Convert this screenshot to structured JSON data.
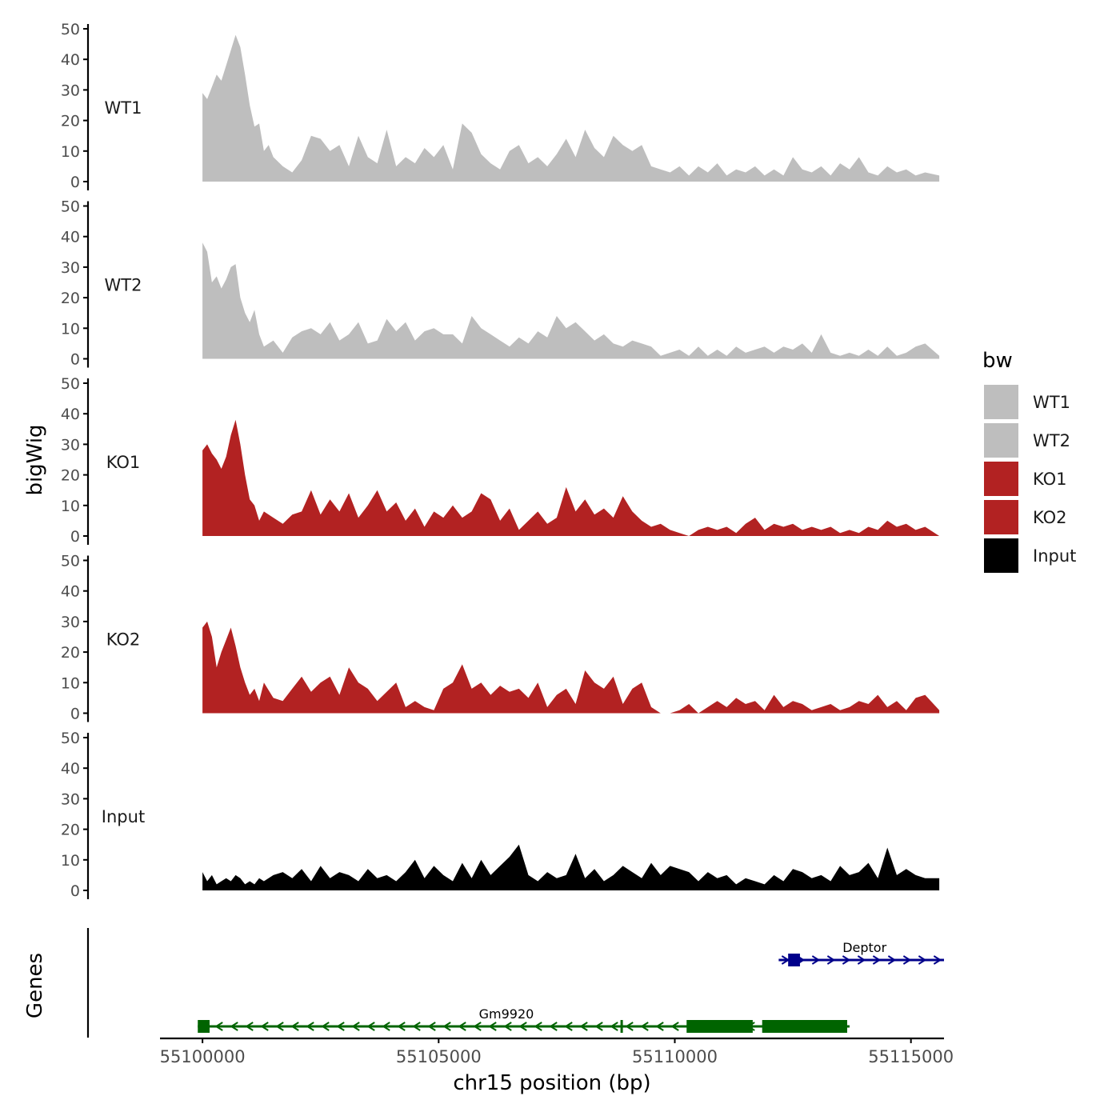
{
  "chart_data": {
    "type": "area",
    "region": "chr15",
    "xlabel": "chr15 position (bp)",
    "ylabel": "bigWig",
    "genes_label": "Genes",
    "xlim": [
      55099100,
      55115700
    ],
    "xticks": [
      55100000,
      55105000,
      55110000,
      55115000
    ],
    "xtick_labels": [
      "55100000",
      "55105000",
      "55110000",
      "55115000"
    ],
    "ylim": [
      0,
      50
    ],
    "yticks": [
      0,
      10,
      20,
      30,
      40,
      50
    ],
    "ytick_labels": [
      "0",
      "10",
      "20",
      "30",
      "40",
      "50"
    ],
    "series": [
      {
        "name": "WT1",
        "color": "#BEBEBE",
        "x": [
          55100000,
          55100100,
          55100200,
          55100300,
          55100400,
          55100500,
          55100600,
          55100700,
          55100800,
          55100900,
          55101000,
          55101100,
          55101200,
          55101300,
          55101400,
          55101500,
          55101700,
          55101900,
          55102100,
          55102300,
          55102500,
          55102700,
          55102900,
          55103100,
          55103300,
          55103500,
          55103700,
          55103900,
          55104100,
          55104300,
          55104500,
          55104700,
          55104900,
          55105100,
          55105300,
          55105500,
          55105700,
          55105900,
          55106100,
          55106300,
          55106500,
          55106700,
          55106900,
          55107100,
          55107300,
          55107500,
          55107700,
          55107900,
          55108100,
          55108300,
          55108500,
          55108700,
          55108900,
          55109100,
          55109300,
          55109500,
          55109700,
          55109900,
          55110100,
          55110300,
          55110500,
          55110700,
          55110900,
          55111100,
          55111300,
          55111500,
          55111700,
          55111900,
          55112100,
          55112300,
          55112500,
          55112700,
          55112900,
          55113100,
          55113300,
          55113500,
          55113700,
          55113900,
          55114100,
          55114300,
          55114500,
          55114700,
          55114900,
          55115100,
          55115300,
          55115600
        ],
        "y": [
          29,
          27,
          31,
          35,
          33,
          38,
          43,
          48,
          44,
          35,
          25,
          18,
          19,
          10,
          12,
          8,
          5,
          3,
          7,
          15,
          14,
          10,
          12,
          5,
          15,
          8,
          6,
          17,
          5,
          8,
          6,
          11,
          8,
          12,
          4,
          19,
          16,
          9,
          6,
          4,
          10,
          12,
          6,
          8,
          5,
          9,
          14,
          8,
          17,
          11,
          8,
          15,
          12,
          10,
          12,
          5,
          4,
          3,
          5,
          2,
          5,
          3,
          6,
          2,
          4,
          3,
          5,
          2,
          4,
          2,
          8,
          4,
          3,
          5,
          2,
          6,
          4,
          8,
          3,
          2,
          5,
          3,
          4,
          2,
          3,
          2
        ]
      },
      {
        "name": "WT2",
        "color": "#BEBEBE",
        "x": [
          55100000,
          55100100,
          55100200,
          55100300,
          55100400,
          55100500,
          55100600,
          55100700,
          55100800,
          55100900,
          55101000,
          55101100,
          55101200,
          55101300,
          55101500,
          55101700,
          55101900,
          55102100,
          55102300,
          55102500,
          55102700,
          55102900,
          55103100,
          55103300,
          55103500,
          55103700,
          55103900,
          55104100,
          55104300,
          55104500,
          55104700,
          55104900,
          55105100,
          55105300,
          55105500,
          55105700,
          55105900,
          55106100,
          55106300,
          55106500,
          55106700,
          55106900,
          55107100,
          55107300,
          55107500,
          55107700,
          55107900,
          55108100,
          55108300,
          55108500,
          55108700,
          55108900,
          55109100,
          55109300,
          55109500,
          55109700,
          55109900,
          55110100,
          55110300,
          55110500,
          55110700,
          55110900,
          55111100,
          55111300,
          55111500,
          55111700,
          55111900,
          55112100,
          55112300,
          55112500,
          55112700,
          55112900,
          55113100,
          55113300,
          55113500,
          55113700,
          55113900,
          55114100,
          55114300,
          55114500,
          55114700,
          55114900,
          55115100,
          55115300,
          55115600
        ],
        "y": [
          38,
          35,
          25,
          27,
          23,
          26,
          30,
          31,
          20,
          15,
          12,
          16,
          8,
          4,
          6,
          2,
          7,
          9,
          10,
          8,
          12,
          6,
          8,
          12,
          5,
          6,
          13,
          9,
          12,
          6,
          9,
          10,
          8,
          8,
          5,
          14,
          10,
          8,
          6,
          4,
          7,
          5,
          9,
          7,
          14,
          10,
          12,
          9,
          6,
          8,
          5,
          4,
          6,
          5,
          4,
          1,
          2,
          3,
          1,
          4,
          1,
          3,
          1,
          4,
          2,
          3,
          4,
          2,
          4,
          3,
          5,
          2,
          8,
          2,
          1,
          2,
          1,
          3,
          1,
          4,
          1,
          2,
          4,
          5,
          1
        ]
      },
      {
        "name": "KO1",
        "color": "#B22222",
        "x": [
          55100000,
          55100100,
          55100200,
          55100300,
          55100400,
          55100500,
          55100600,
          55100700,
          55100800,
          55100900,
          55101000,
          55101100,
          55101200,
          55101300,
          55101500,
          55101700,
          55101900,
          55102100,
          55102300,
          55102500,
          55102700,
          55102900,
          55103100,
          55103300,
          55103500,
          55103700,
          55103900,
          55104100,
          55104300,
          55104500,
          55104700,
          55104900,
          55105100,
          55105300,
          55105500,
          55105700,
          55105900,
          55106100,
          55106300,
          55106500,
          55106700,
          55106900,
          55107100,
          55107300,
          55107500,
          55107700,
          55107900,
          55108100,
          55108300,
          55108500,
          55108700,
          55108900,
          55109100,
          55109300,
          55109500,
          55109700,
          55109900,
          55110100,
          55110300,
          55110500,
          55110700,
          55110900,
          55111100,
          55111300,
          55111500,
          55111700,
          55111900,
          55112100,
          55112300,
          55112500,
          55112700,
          55112900,
          55113100,
          55113300,
          55113500,
          55113700,
          55113900,
          55114100,
          55114300,
          55114500,
          55114700,
          55114900,
          55115100,
          55115300,
          55115600
        ],
        "y": [
          28,
          30,
          27,
          25,
          22,
          26,
          33,
          38,
          30,
          20,
          12,
          10,
          5,
          8,
          6,
          4,
          7,
          8,
          15,
          7,
          12,
          8,
          14,
          6,
          10,
          15,
          8,
          11,
          5,
          9,
          3,
          8,
          6,
          10,
          6,
          8,
          14,
          12,
          5,
          9,
          2,
          5,
          8,
          4,
          6,
          16,
          8,
          12,
          7,
          9,
          6,
          13,
          8,
          5,
          3,
          4,
          2,
          1,
          0,
          2,
          3,
          2,
          3,
          1,
          4,
          6,
          2,
          4,
          3,
          4,
          2,
          3,
          2,
          3,
          1,
          2,
          1,
          3,
          2,
          5,
          3,
          4,
          2,
          3,
          0
        ]
      },
      {
        "name": "KO2",
        "color": "#B22222",
        "x": [
          55100000,
          55100100,
          55100200,
          55100300,
          55100400,
          55100500,
          55100600,
          55100700,
          55100800,
          55100900,
          55101000,
          55101100,
          55101200,
          55101300,
          55101500,
          55101700,
          55101900,
          55102100,
          55102300,
          55102500,
          55102700,
          55102900,
          55103100,
          55103300,
          55103500,
          55103700,
          55103900,
          55104100,
          55104300,
          55104500,
          55104700,
          55104900,
          55105100,
          55105300,
          55105500,
          55105700,
          55105900,
          55106100,
          55106300,
          55106500,
          55106700,
          55106900,
          55107100,
          55107300,
          55107500,
          55107700,
          55107900,
          55108100,
          55108300,
          55108500,
          55108700,
          55108900,
          55109100,
          55109300,
          55109500,
          55109700,
          55109900,
          55110100,
          55110300,
          55110500,
          55110700,
          55110900,
          55111100,
          55111300,
          55111500,
          55111700,
          55111900,
          55112100,
          55112300,
          55112500,
          55112700,
          55112900,
          55113100,
          55113300,
          55113500,
          55113700,
          55113900,
          55114100,
          55114300,
          55114500,
          55114700,
          55114900,
          55115100,
          55115300,
          55115600
        ],
        "y": [
          28,
          30,
          25,
          15,
          20,
          24,
          28,
          22,
          15,
          10,
          6,
          8,
          4,
          10,
          5,
          4,
          8,
          12,
          7,
          10,
          12,
          6,
          15,
          10,
          8,
          4,
          7,
          10,
          2,
          4,
          2,
          1,
          8,
          10,
          16,
          8,
          10,
          6,
          9,
          7,
          8,
          5,
          10,
          2,
          6,
          8,
          3,
          14,
          10,
          8,
          12,
          3,
          8,
          10,
          2,
          0,
          0,
          1,
          3,
          0,
          2,
          4,
          2,
          5,
          3,
          4,
          1,
          6,
          2,
          4,
          3,
          1,
          2,
          3,
          1,
          2,
          4,
          3,
          6,
          2,
          4,
          1,
          5,
          6,
          1
        ]
      },
      {
        "name": "Input",
        "color": "#000000",
        "x": [
          55100000,
          55100100,
          55100200,
          55100300,
          55100400,
          55100500,
          55100600,
          55100700,
          55100800,
          55100900,
          55101000,
          55101100,
          55101200,
          55101300,
          55101500,
          55101700,
          55101900,
          55102100,
          55102300,
          55102500,
          55102700,
          55102900,
          55103100,
          55103300,
          55103500,
          55103700,
          55103900,
          55104100,
          55104300,
          55104500,
          55104700,
          55104900,
          55105100,
          55105300,
          55105500,
          55105700,
          55105900,
          55106100,
          55106300,
          55106500,
          55106700,
          55106900,
          55107100,
          55107300,
          55107500,
          55107700,
          55107900,
          55108100,
          55108300,
          55108500,
          55108700,
          55108900,
          55109100,
          55109300,
          55109500,
          55109700,
          55109900,
          55110100,
          55110300,
          55110500,
          55110700,
          55110900,
          55111100,
          55111300,
          55111500,
          55111700,
          55111900,
          55112100,
          55112300,
          55112500,
          55112700,
          55112900,
          55113100,
          55113300,
          55113500,
          55113700,
          55113900,
          55114100,
          55114300,
          55114500,
          55114700,
          55114900,
          55115100,
          55115300,
          55115600
        ],
        "y": [
          6,
          3,
          5,
          2,
          3,
          4,
          3,
          5,
          4,
          2,
          3,
          2,
          4,
          3,
          5,
          6,
          4,
          7,
          3,
          8,
          4,
          6,
          5,
          3,
          7,
          4,
          5,
          3,
          6,
          10,
          4,
          8,
          5,
          3,
          9,
          4,
          10,
          5,
          8,
          11,
          15,
          5,
          3,
          6,
          4,
          5,
          12,
          4,
          7,
          3,
          5,
          8,
          6,
          4,
          9,
          5,
          8,
          7,
          6,
          3,
          6,
          4,
          5,
          2,
          4,
          3,
          2,
          5,
          3,
          7,
          6,
          4,
          5,
          3,
          8,
          5,
          6,
          9,
          4,
          14,
          5,
          7,
          5,
          4,
          4
        ]
      }
    ],
    "legend": {
      "title": "bw",
      "placement": "right",
      "entries": [
        {
          "label": "WT1",
          "color": "#BEBEBE"
        },
        {
          "label": "WT2",
          "color": "#BEBEBE"
        },
        {
          "label": "KO1",
          "color": "#B22222"
        },
        {
          "label": "KO2",
          "color": "#B22222"
        },
        {
          "label": "Input",
          "color": "#000000"
        }
      ]
    },
    "genes": [
      {
        "name": "Deptor",
        "strand": "+",
        "color": "#00008B",
        "start": 55112200,
        "end": 55115700,
        "exons": [
          [
            55112400,
            55112650
          ]
        ]
      },
      {
        "name": "Gm9920",
        "strand": "-",
        "color": "#006400",
        "start": 55099900,
        "end": 55113700,
        "exons": [
          [
            55099900,
            55100150
          ],
          [
            55108850,
            55108900
          ],
          [
            55110250,
            55111650
          ],
          [
            55111850,
            55113650
          ]
        ]
      }
    ]
  }
}
